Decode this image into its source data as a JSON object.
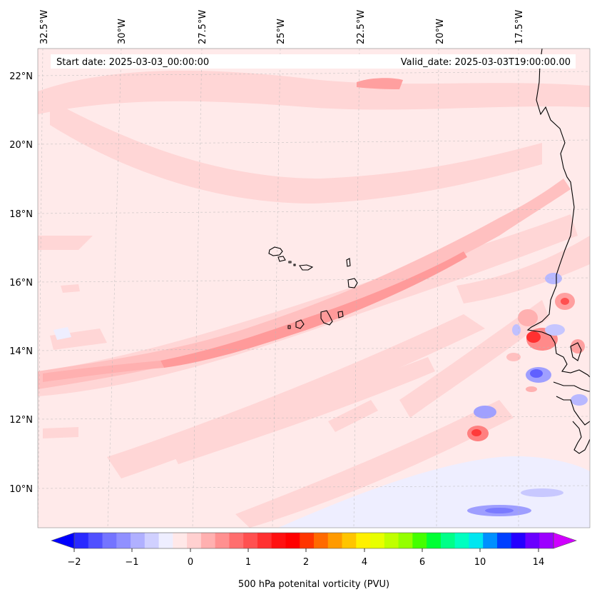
{
  "map": {
    "start_date": "Start date: 2025-03-03_00:00:00",
    "valid_date": "Valid_date: 2025-03-03T19:00:00.00",
    "lon_labels": [
      "32.5°W",
      "30°W",
      "27.5°W",
      "25°W",
      "22.5°W",
      "20°W",
      "17.5°W"
    ],
    "lat_labels": [
      "22°N",
      "20°N",
      "18°N",
      "16°N",
      "14°N",
      "12°N",
      "10°N"
    ],
    "colorbar": {
      "label": "500 hPa potenital vorticity (PVU)",
      "tick_labels": [
        "−2",
        "−1",
        "0",
        "1",
        "2",
        "4",
        "6",
        "10",
        "14"
      ],
      "colors": [
        "#0000ff",
        "#2a2aff",
        "#5050ff",
        "#7474ff",
        "#9090ff",
        "#b0b0ff",
        "#d0d0ff",
        "#eeeeff",
        "#ffe8e8",
        "#ffd0d0",
        "#ffb0b0",
        "#ff9090",
        "#ff6e6e",
        "#ff5050",
        "#ff3030",
        "#ff1010",
        "#ff0000",
        "#ff3500",
        "#ff6a00",
        "#ff9a00",
        "#ffc500",
        "#fff000",
        "#e8ff00",
        "#c0ff00",
        "#94ff00",
        "#44ff00",
        "#00ff33",
        "#00ff88",
        "#00ffc0",
        "#00e6f0",
        "#0090ff",
        "#0040ff",
        "#2400ff",
        "#6a00ff",
        "#9c00ff",
        "#d000ff"
      ]
    }
  }
}
